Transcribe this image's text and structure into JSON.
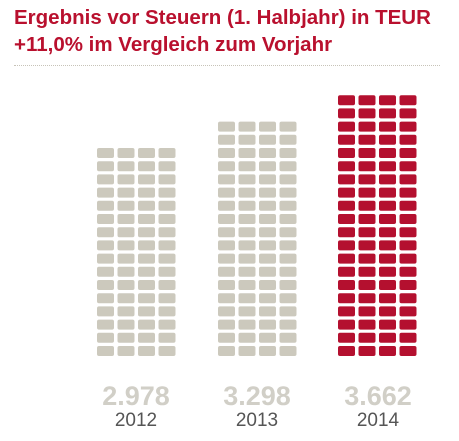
{
  "chart_data": {
    "type": "bar",
    "title": "Ergebnis vor Steuern (1. Halbjahr) in TEUR",
    "subtitle": "+11,0% im Vergleich zum Vorjahr",
    "categories": [
      "2012",
      "2013",
      "2014"
    ],
    "values": [
      2978,
      3298,
      3662
    ],
    "value_labels": [
      "2.978",
      "3.298",
      "3.662"
    ],
    "unit": "TEUR",
    "colors": [
      "#ccc9bd",
      "#ccc9bd",
      "#b4102f"
    ],
    "label_color": "#d1cfc7",
    "title_color": "#b9102e"
  }
}
